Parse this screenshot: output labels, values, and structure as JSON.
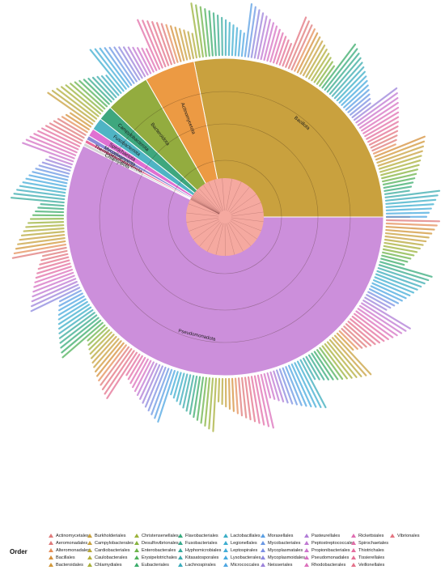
{
  "tree": {
    "phyla": [
      {
        "name": "Bacillota",
        "color": "#c9a13e",
        "frac": 0.245
      },
      {
        "name": "Actinomycetota",
        "color": "#ec9a43",
        "frac": 0.045
      },
      {
        "name": "Bacteroidota",
        "color": "#93ac3f",
        "frac": 0.04
      },
      {
        "name": "Campylobacterota",
        "color": "#3ea77e",
        "frac": 0.013
      },
      {
        "name": "Fusobacteriota",
        "color": "#4fb4c4",
        "frac": 0.011
      },
      {
        "name": "Spirochaetota",
        "color": "#e070d2",
        "frac": 0.007
      },
      {
        "name": "Mycoplasmatota",
        "color": "#8c8bd8",
        "frac": 0.004
      },
      {
        "name": "Thermodesulfobacteriota",
        "color": "#e96a9a",
        "frac": 0.003
      },
      {
        "name": "Chlamydiota",
        "color": "#d6d6d6",
        "frac": 0.003
      },
      {
        "name": "Pseudomonadota",
        "color": "#cc8fdb",
        "frac": 0.5
      }
    ],
    "root_color": "#f5a9a0"
  },
  "legend": {
    "title": "Order",
    "columns": [
      [
        {
          "label": "Actinomycetales",
          "color": "#e07a7a"
        },
        {
          "label": "Aeromonadales",
          "color": "#e07a7a"
        },
        {
          "label": "Alteromonadales",
          "color": "#e58f5a"
        },
        {
          "label": "Bacillales",
          "color": "#d58f3a"
        },
        {
          "label": "Bacteroidales",
          "color": "#d2983a"
        }
      ],
      [
        {
          "label": "Burkholderiales",
          "color": "#c9a13e"
        },
        {
          "label": "Campylobacterales",
          "color": "#c9a13e"
        },
        {
          "label": "Cardiobacteriales",
          "color": "#b8a83a"
        },
        {
          "label": "Caulobacterales",
          "color": "#b3ae3a"
        },
        {
          "label": "Chlamydiales",
          "color": "#a9b03a"
        }
      ],
      [
        {
          "label": "Christensenellales",
          "color": "#9bb23a"
        },
        {
          "label": "Desulfovibrionales",
          "color": "#86b43e"
        },
        {
          "label": "Enterobacterales",
          "color": "#6db44a"
        },
        {
          "label": "Erysipelotrichales",
          "color": "#4fb15a"
        },
        {
          "label": "Eubacteriales",
          "color": "#3aac6a"
        }
      ],
      [
        {
          "label": "Flavobacteriales",
          "color": "#36ab7c"
        },
        {
          "label": "Fusobacteriales",
          "color": "#36aa8c"
        },
        {
          "label": "Hyphomicrobiales",
          "color": "#36aa9c"
        },
        {
          "label": "Kitasatosporales",
          "color": "#3aabae"
        },
        {
          "label": "Lachnospirales",
          "color": "#3aacbc"
        }
      ],
      [
        {
          "label": "Lactobacillales",
          "color": "#3aaec6"
        },
        {
          "label": "Legionellales",
          "color": "#3eaed0"
        },
        {
          "label": "Leptospirales",
          "color": "#42add8"
        },
        {
          "label": "Lysobacterales",
          "color": "#46aade"
        },
        {
          "label": "Micrococcales",
          "color": "#4ea6e2"
        }
      ],
      [
        {
          "label": "Moraxellales",
          "color": "#5a9fe4"
        },
        {
          "label": "Mycobacteriales",
          "color": "#6a98e4"
        },
        {
          "label": "Mycoplasmatales",
          "color": "#7c90e2"
        },
        {
          "label": "Mycoplasmoidales",
          "color": "#8c88de"
        },
        {
          "label": "Neisseriales",
          "color": "#9c82da"
        }
      ],
      [
        {
          "label": "Pasteurellales",
          "color": "#b07cd6"
        },
        {
          "label": "Peptostreptococcales",
          "color": "#c078d2"
        },
        {
          "label": "Propionibacteriales",
          "color": "#cc74cc"
        },
        {
          "label": "Pseudomonadales",
          "color": "#d672c4"
        },
        {
          "label": "Rhodobacterales",
          "color": "#dc70bc"
        }
      ],
      [
        {
          "label": "Rickettsiales",
          "color": "#e06eb2"
        },
        {
          "label": "Spirochaetales",
          "color": "#e26ea8"
        },
        {
          "label": "Thiotrichales",
          "color": "#e46e9e"
        },
        {
          "label": "Tissierellales",
          "color": "#e47094"
        },
        {
          "label": "Veillonellales",
          "color": "#e4728a"
        }
      ],
      [
        {
          "label": "Vibrionales",
          "color": "#e47480"
        }
      ]
    ]
  }
}
